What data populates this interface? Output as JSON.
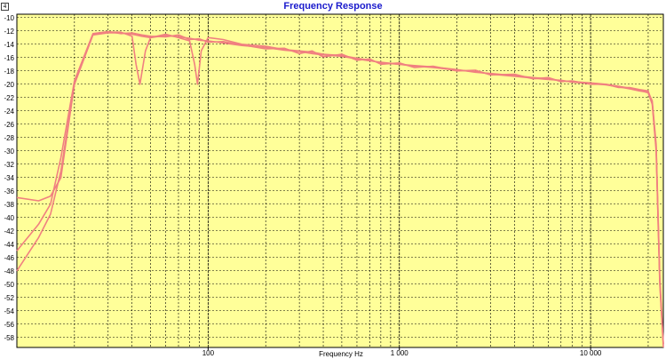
{
  "chart_data": {
    "type": "line",
    "title": "Frequency Response",
    "xlabel": "Frequency Hz",
    "ylabel": "",
    "x_scale": "log",
    "xlim": [
      10,
      24000
    ],
    "ylim": [
      -59.5,
      -9.5
    ],
    "x_tick_labels": [
      {
        "value": 100,
        "label": "100"
      },
      {
        "value": 1000,
        "label": "1 000"
      },
      {
        "value": 10000,
        "label": "10 000"
      }
    ],
    "y_ticks": [
      -10,
      -12,
      -14,
      -16,
      -18,
      -20,
      -22,
      -24,
      -26,
      -28,
      -30,
      -32,
      -34,
      -36,
      -38,
      -40,
      -42,
      -44,
      -46,
      -48,
      -50,
      -52,
      -54,
      -56,
      -58
    ],
    "grid": true,
    "background_color": "#ffff99",
    "line_color": "#f08080",
    "series": [
      {
        "x": [
          10,
          13,
          15,
          17,
          20,
          25,
          30,
          35,
          40,
          42,
          44,
          47,
          50,
          60,
          70,
          80,
          85,
          88,
          92,
          100,
          120,
          150,
          200,
          250,
          300,
          350,
          400,
          500,
          600,
          700,
          800,
          1000,
          1200,
          1500,
          2000,
          2500,
          3000,
          4000,
          5000,
          6000,
          7000,
          8000,
          10000,
          12000,
          14000,
          16000,
          18000,
          20000,
          21000,
          22000,
          23000,
          24000
        ],
        "values": [
          -48,
          -43,
          -39.5,
          -33,
          -20,
          -12.5,
          -12.2,
          -12.2,
          -12.8,
          -17,
          -20,
          -15,
          -13,
          -12.5,
          -13,
          -13.5,
          -17,
          -20,
          -15,
          -13,
          -13.3,
          -14,
          -14.3,
          -14.8,
          -15,
          -15.2,
          -15.5,
          -15.7,
          -16.1,
          -16.4,
          -16.8,
          -17,
          -17.2,
          -17.4,
          -17.8,
          -18.2,
          -18.4,
          -18.7,
          -19,
          -19.2,
          -19.5,
          -19.6,
          -19.8,
          -20,
          -20.3,
          -20.6,
          -20.9,
          -21.3,
          -23,
          -30,
          -50,
          -59
        ]
      },
      {
        "x": [
          10,
          13,
          15,
          17,
          20,
          25,
          30,
          35,
          40,
          45,
          50,
          60,
          70,
          80,
          90,
          100,
          120,
          150,
          200,
          250,
          300,
          350,
          400,
          500,
          600,
          700,
          800,
          1000,
          1200,
          1500,
          2000,
          2500,
          3000,
          4000,
          5000,
          6000,
          7000,
          8000,
          10000,
          12000,
          14000,
          16000,
          18000,
          20000,
          21000,
          22000,
          23000,
          24000
        ],
        "values": [
          -37,
          -37.5,
          -36.8,
          -34,
          -20,
          -12.6,
          -12.3,
          -12.3,
          -12.5,
          -12.8,
          -13,
          -12.7,
          -12.9,
          -13.1,
          -13.4,
          -13.5,
          -13.8,
          -14.2,
          -14.5,
          -14.9,
          -15.1,
          -15.4,
          -15.6,
          -15.8,
          -16.2,
          -16.5,
          -16.7,
          -17,
          -17.3,
          -17.5,
          -17.9,
          -18.1,
          -18.5,
          -18.8,
          -19.1,
          -19.3,
          -19.4,
          -19.7,
          -19.9,
          -20.1,
          -20.4,
          -20.7,
          -21,
          -21.2,
          -22.5,
          -29,
          -49,
          -59
        ]
      },
      {
        "x": [
          10,
          13,
          15,
          17,
          20,
          25,
          30,
          35,
          40,
          45,
          50,
          60,
          70,
          80,
          90,
          100,
          120,
          150,
          200,
          250,
          300,
          350,
          400,
          500,
          600,
          700,
          800,
          1000,
          1200,
          1500,
          2000,
          2500,
          3000,
          4000,
          5000,
          6000,
          7000,
          8000,
          10000,
          12000,
          14000,
          16000,
          18000,
          20000,
          21000,
          22000,
          23000,
          24000
        ],
        "values": [
          -45,
          -41,
          -38,
          -31,
          -19.5,
          -12.4,
          -12.1,
          -12.4,
          -12.3,
          -12.6,
          -12.8,
          -12.9,
          -12.6,
          -13.3,
          -13.2,
          -13.7,
          -13.6,
          -14.1,
          -14.7,
          -14.6,
          -15.4,
          -15,
          -15.9,
          -15.5,
          -16.4,
          -16.2,
          -17,
          -16.8,
          -17.5,
          -17.3,
          -18,
          -17.9,
          -18.6,
          -18.5,
          -19.2,
          -19,
          -19.6,
          -19.5,
          -20,
          -20,
          -20.5,
          -20.5,
          -20.8,
          -21,
          -22.8,
          -29.5,
          -49.5,
          -59.5
        ]
      }
    ]
  }
}
